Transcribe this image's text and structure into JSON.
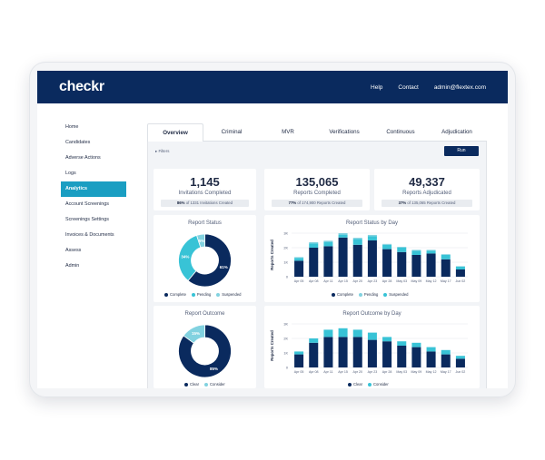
{
  "colors": {
    "navy": "#0a2a5e",
    "teal": "#1a9ec2",
    "cyan": "#38c3d6",
    "light": "#82d2e0"
  },
  "header": {
    "logo": "checkr",
    "links": [
      "Help",
      "Contact",
      "admin@flextex.com"
    ]
  },
  "sidebar": {
    "items": [
      {
        "label": "Home"
      },
      {
        "label": "Candidates"
      },
      {
        "label": "Adverse Actions"
      },
      {
        "label": "Logs"
      },
      {
        "label": "Analytics",
        "active": true
      },
      {
        "label": "Account Screenings"
      },
      {
        "label": "Screenings Settings"
      },
      {
        "label": "Invoices & Documents"
      },
      {
        "label": "Assess"
      },
      {
        "label": "Admin"
      }
    ]
  },
  "tabs": [
    "Overview",
    "Criminal",
    "MVR",
    "Verifications",
    "Continuous",
    "Adjudication"
  ],
  "filters": {
    "label": "Filters",
    "run_label": "Run"
  },
  "stats": [
    {
      "value": "1,145",
      "label": "Invitations Completed",
      "pct": "86%",
      "detail": "of 1331 Invitations Created"
    },
    {
      "value": "135,065",
      "label": "Reports Completed",
      "pct": "77%",
      "detail": "of 174,900 Reports Created"
    },
    {
      "value": "49,337",
      "label": "Reports Adjudicated",
      "pct": "37%",
      "detail": "of 135,065 Reports Created"
    }
  ],
  "chart_data": [
    {
      "type": "pie",
      "title": "Report Status",
      "labels": [
        "Complete",
        "Pending",
        "Suspended"
      ],
      "values": [
        61,
        34,
        5
      ],
      "value_labels": [
        "61%",
        "34%",
        "5%"
      ]
    },
    {
      "type": "bar",
      "title": "Report Status by Day",
      "ylabel": "Reports Created",
      "categories": [
        "Apr 05",
        "Apr 08",
        "Apr 11",
        "Apr 15",
        "Apr 20",
        "Apr 23",
        "Apr 28",
        "May 03",
        "May 09",
        "May 12",
        "May 17",
        "Jun 02"
      ],
      "yticks": [
        "0",
        "1K",
        "2K",
        "3K"
      ],
      "ylim": [
        0,
        3
      ],
      "series": [
        {
          "name": "Complete",
          "values": [
            1.1,
            2.0,
            2.1,
            2.7,
            2.2,
            2.5,
            1.9,
            1.7,
            1.5,
            1.6,
            1.2,
            0.5
          ]
        },
        {
          "name": "Pending",
          "values": [
            0.2,
            0.3,
            0.3,
            0.2,
            0.4,
            0.3,
            0.3,
            0.3,
            0.3,
            0.2,
            0.3,
            0.2
          ]
        },
        {
          "name": "Suspended",
          "values": [
            0.05,
            0.08,
            0.08,
            0.1,
            0.08,
            0.08,
            0.06,
            0.06,
            0.05,
            0.05,
            0.05,
            0.03
          ]
        }
      ]
    },
    {
      "type": "pie",
      "title": "Report Outcome",
      "labels": [
        "Clear",
        "Consider"
      ],
      "values": [
        85,
        15
      ],
      "value_labels": [
        "85%",
        "15%"
      ]
    },
    {
      "type": "bar",
      "title": "Report Outcome by Day",
      "ylabel": "Reports Created",
      "categories": [
        "Apr 05",
        "Apr 08",
        "Apr 11",
        "Apr 15",
        "Apr 20",
        "Apr 23",
        "Apr 28",
        "May 03",
        "May 09",
        "May 12",
        "May 17",
        "Jun 02"
      ],
      "yticks": [
        "0",
        "1K",
        "2K",
        "3K"
      ],
      "ylim": [
        0,
        3
      ],
      "series": [
        {
          "name": "Clear",
          "values": [
            0.9,
            1.7,
            2.1,
            2.1,
            2.1,
            1.9,
            1.8,
            1.5,
            1.4,
            1.1,
            0.9,
            0.6
          ]
        },
        {
          "name": "Consider",
          "values": [
            0.2,
            0.3,
            0.5,
            0.6,
            0.5,
            0.5,
            0.3,
            0.3,
            0.3,
            0.3,
            0.3,
            0.2
          ]
        }
      ]
    }
  ]
}
